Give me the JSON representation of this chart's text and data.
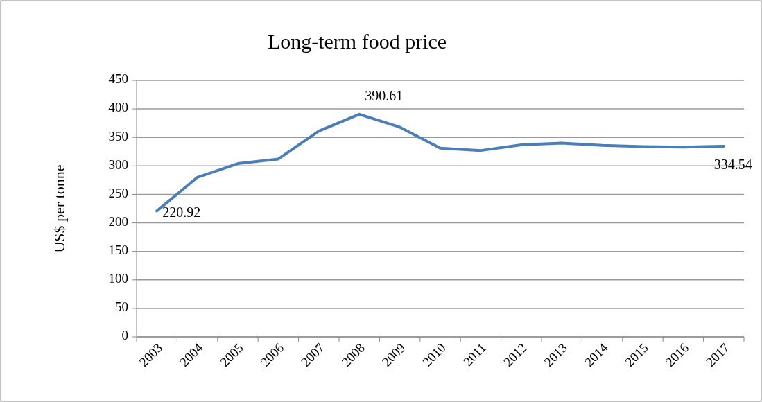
{
  "chart_data": {
    "type": "line",
    "title": "Long-term food price",
    "ylabel": "US$ per tonne",
    "categories": [
      "2003",
      "2004",
      "2005",
      "2006",
      "2007",
      "2008",
      "2009",
      "2010",
      "2011",
      "2012",
      "2013",
      "2014",
      "2015",
      "2016",
      "2017"
    ],
    "series": [
      {
        "color": "#4a7ebb",
        "values": [
          220.92,
          280,
          304,
          312,
          361,
          390.61,
          368,
          331,
          327,
          337,
          340,
          336,
          334,
          333,
          334.54
        ],
        "value_labels": [
          "220.92",
          null,
          null,
          null,
          null,
          "390.61",
          null,
          null,
          null,
          null,
          null,
          null,
          null,
          null,
          "334.54"
        ]
      }
    ],
    "ylim": [
      0,
      450
    ],
    "yticks": [
      0,
      50,
      100,
      150,
      200,
      250,
      300,
      350,
      400,
      450
    ],
    "grid": "y",
    "marker": "none",
    "line_style": "solid"
  }
}
